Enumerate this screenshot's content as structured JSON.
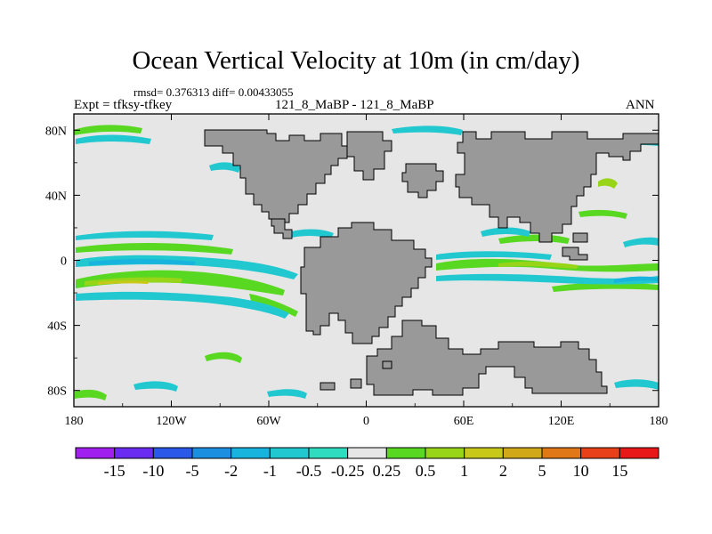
{
  "chart_data": {
    "type": "heatmap",
    "title": "Ocean Vertical Velocity at 10m (in cm/day)",
    "stats_label": "rmsd= 0.376313 diff= 0.00433055",
    "left_label": "Expt = tfksy-tfkey",
    "center_label": "121_8_MaBP - 121_8_MaBP",
    "right_label": "ANN",
    "x_ticks": [
      "180",
      "120W",
      "60W",
      "0",
      "60E",
      "120E",
      "180"
    ],
    "y_ticks": [
      "80N",
      "40N",
      "0",
      "40S",
      "80S"
    ],
    "x_range": [
      -180,
      180
    ],
    "y_range": [
      -90,
      90
    ],
    "colorbar": {
      "labels": [
        "-15",
        "-10",
        "-5",
        "-2",
        "-1",
        "-0.5",
        "-0.25",
        "0.25",
        "0.5",
        "1",
        "2",
        "5",
        "10",
        "15"
      ],
      "colors": [
        "#a020f0",
        "#6a2cf0",
        "#2a58e8",
        "#1c8fe0",
        "#18b4de",
        "#22c8d0",
        "#30dcc0",
        "#e6e6e6",
        "#58d820",
        "#98d418",
        "#c8c818",
        "#d0a818",
        "#e07818",
        "#e84018",
        "#e81818"
      ]
    },
    "land_color": "#999999",
    "background_color": "#e6e6e6"
  }
}
